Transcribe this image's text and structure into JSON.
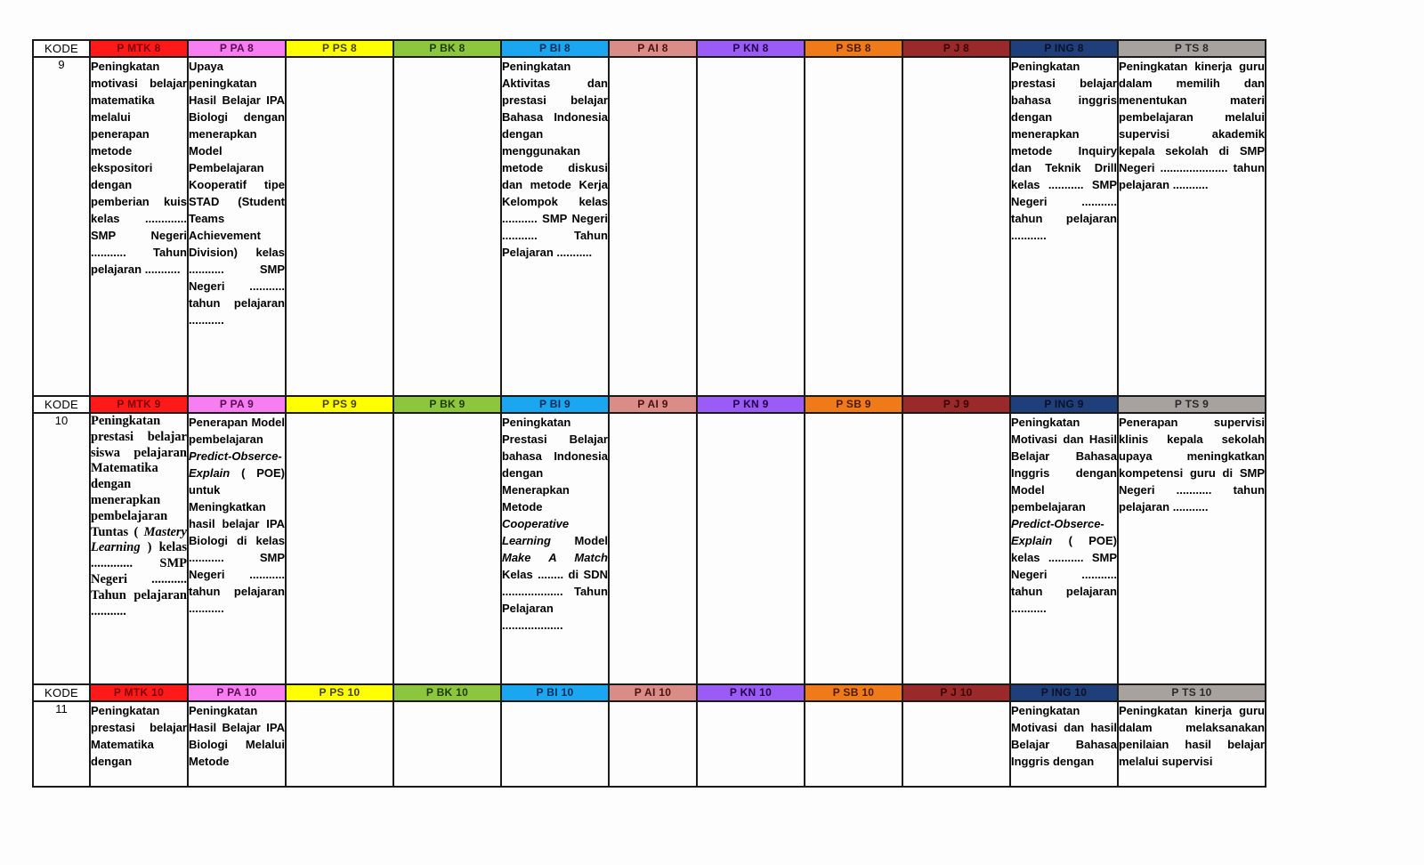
{
  "kode_label": "KODE",
  "colors": {
    "P MTK": "#ff1a1a",
    "P PA": "#f77ef0",
    "P PS": "#ffff00",
    "P BK": "#8cc63f",
    "P BI": "#1aa7f0",
    "P AI": "#d98d86",
    "P KN": "#9b5cf6",
    "P SB": "#ef7a1a",
    "P J": "#9a2a2a",
    "P ING": "#1f3f7a",
    "P TS": "#a8a29e"
  },
  "blocks": [
    {
      "number": "9",
      "headers": [
        "P MTK 8",
        "P PA  8",
        "P PS 8",
        "P BK  8",
        "P BI 8",
        "P AI 8",
        "P KN  8",
        "P SB 8",
        "P J  8",
        "P ING 8",
        "P TS 8"
      ],
      "cells": {
        "mtk": "Peningkatan motivasi belajar matematika melalui penerapan metode ekspositori dengan pemberian kuis kelas ............. SMP Negeri ........... Tahun pelajaran ...........",
        "pa": "Upaya peningkatan Hasil Belajar IPA Biologi dengan menerapkan Model Pembelajaran Kooperatif tipe STAD (Student Teams Achievement Division) kelas ........... SMP Negeri ........... tahun pelajaran ...........",
        "bi": "Peningkatan Aktivitas dan prestasi belajar Bahasa Indonesia dengan menggunakan metode diskusi dan metode Kerja Kelompok kelas ........... SMP Negeri ........... Tahun Pelajaran ...........",
        "ing": "Peningkatan prestasi belajar bahasa inggris dengan menerapkan metode Inquiry dan Teknik Drill kelas ........... SMP Negeri ........... tahun pelajaran ...........",
        "ts": "Peningkatan kinerja guru dalam memilih dan menentukan materi pembelajaran melalui supervisi akademik kepala sekolah di SMP Negeri ..................... tahun pelajaran ..........."
      }
    },
    {
      "number": "10",
      "headers": [
        "P MTK 9",
        "P PA  9",
        "P PS 9",
        "P BK  9",
        "P BI 9",
        "P AI 9",
        "P KN  9",
        "P SB 9",
        "P J  9",
        "P ING 9",
        "P TS 9"
      ],
      "cells": {
        "mtk_1": "Peningkatan prestasi belajar siswa pelajaran Matematika dengan menerapkan pembelajaran Tuntas (",
        "mtk_it": "Mastery Learning",
        "mtk_2": ") kelas ............. SMP Negeri ........... Tahun pelajaran ...........",
        "pa_1": "Penerapan Model pembelajaran",
        "pa_it": "Predict-Obserce-Explain",
        "pa_2": "( POE) untuk Meningkatkan hasil belajar IPA Biologi di kelas ........... SMP Negeri ........... tahun pelajaran ...........",
        "bi_1": "Peningkatan Prestasi Belajar bahasa Indonesia dengan Menerapkan Metode",
        "bi_it1": "Cooperative Learning",
        "bi_2": "Model",
        "bi_it2": "Make A Match",
        "bi_3": "Kelas ........ di SDN ................... Tahun Pelajaran ...................",
        "ing_1": "Peningkatan Motivasi dan Hasil Belajar Bahasa Inggris dengan Model pembelajaran",
        "ing_it": "Predict-Obserce-Explain",
        "ing_2": "( POE) kelas ........... SMP Negeri ........... tahun pelajaran ...........",
        "ts": "Penerapan supervisi klinis kepala sekolah upaya meningkatkan kompetensi guru di SMP Negeri ........... tahun pelajaran ..........."
      }
    },
    {
      "number": "11",
      "headers": [
        "P MTK 10",
        "P PA  10",
        "P PS 10",
        "P BK  10",
        "P BI 10",
        "P AI 10",
        "P KN  10",
        "P SB 10",
        "P J  10",
        "P ING 10",
        "P TS 10"
      ],
      "cells": {
        "mtk": "Peningkatan prestasi belajar Matematika dengan",
        "pa": "Peningkatan Hasil Belajar IPA Biologi Melalui Metode",
        "ing": "Peningkatan Motivasi dan hasil Belajar Bahasa Inggris dengan",
        "ts": "Peningkatan kinerja guru dalam melaksanakan penilaian hasil belajar melalui supervisi"
      }
    }
  ]
}
